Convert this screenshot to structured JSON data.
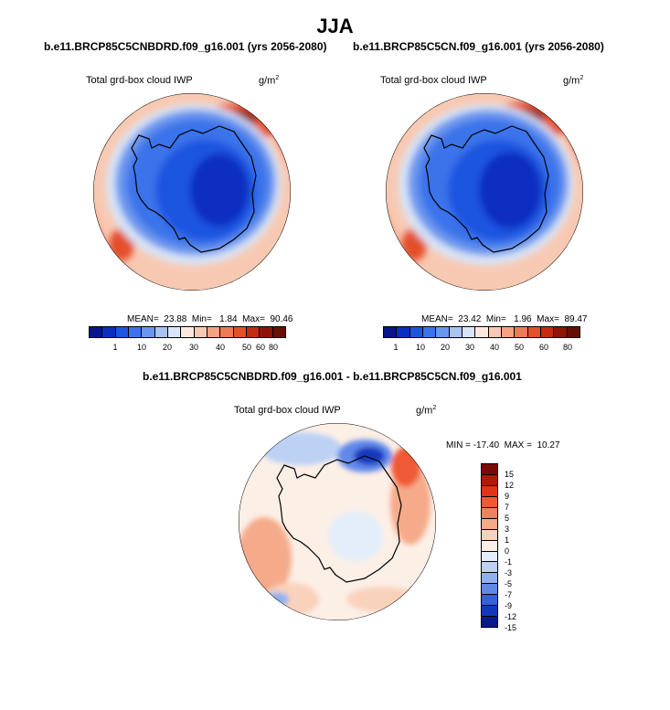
{
  "chart_data": {
    "type": "heatmap",
    "title": "JJA",
    "panels": [
      {
        "name": "panel-1",
        "title": "b.e11.BRCP85C5CNBDRD.f09_g16.001 (yrs 2056-2080)",
        "variable": "Total grd-box cloud IWP",
        "units_base": "g/m",
        "units_exp": "2",
        "stats": "MEAN=  23.88  Min=   1.84  Max=  90.46",
        "colorbar_ticks": [
          "1",
          "10",
          "20",
          "30",
          "40",
          "50",
          "60",
          "80"
        ]
      },
      {
        "name": "panel-2",
        "title": "b.e11.BRCP85C5CN.f09_g16.001 (yrs 2056-2080)",
        "variable": "Total grd-box cloud IWP",
        "units_base": "g/m",
        "units_exp": "2",
        "stats": "MEAN=  23.42  Min=   1.96  Max=  89.47",
        "colorbar_ticks": [
          "1",
          "10",
          "20",
          "30",
          "40",
          "50",
          "60",
          "80"
        ]
      },
      {
        "name": "panel-diff",
        "title": "b.e11.BRCP85C5CNBDRD.f09_g16.001 - b.e11.BRCP85C5CN.f09_g16.001",
        "variable": "Total grd-box cloud IWP",
        "units_base": "g/m",
        "units_exp": "2",
        "stats": "MIN = -17.40  MAX =  10.27",
        "colorbar_ticks": [
          "15",
          "12",
          "9",
          "7",
          "5",
          "3",
          "1",
          "0",
          "-1",
          "-3",
          "-5",
          "-7",
          "-9",
          "-12",
          "-15"
        ]
      }
    ]
  },
  "colors": {
    "abs_scale": [
      "#08148c",
      "#0a2fc0",
      "#1e55e0",
      "#3a73ea",
      "#6a96ee",
      "#a9c3f4",
      "#d8e5f8",
      "#fbe9e0",
      "#f8c9b2",
      "#f5a383",
      "#f07a57",
      "#e44f2c",
      "#c62a10",
      "#8e1406",
      "#650f05"
    ],
    "diff_scale": [
      "#7a0a05",
      "#b01808",
      "#e03414",
      "#ef5a34",
      "#f2825c",
      "#f5aa8a",
      "#f9d2bc",
      "#fcefe6",
      "#e4eefa",
      "#bcd1f4",
      "#8fb0ef",
      "#6089ea",
      "#3461de",
      "#1238bc",
      "#0a1a8c"
    ]
  }
}
